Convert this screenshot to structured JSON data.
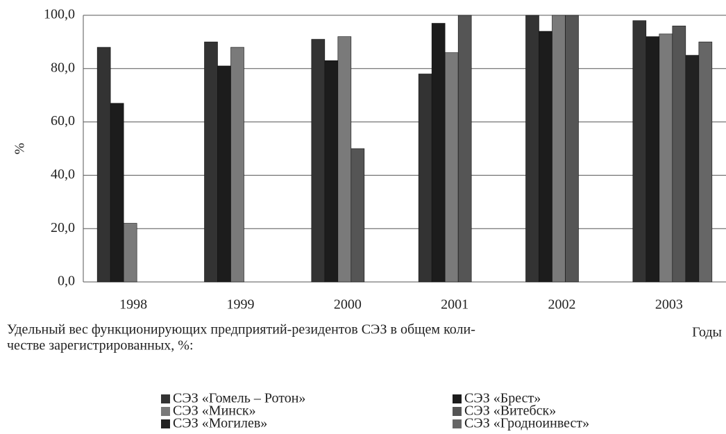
{
  "chart_data": {
    "type": "bar",
    "categories": [
      "1998",
      "1999",
      "2000",
      "2001",
      "2002",
      "2003"
    ],
    "series": [
      {
        "name": "СЭЗ «Гомель – Ротон»",
        "color": "#333333",
        "values": [
          88,
          90,
          91,
          78,
          100,
          98
        ]
      },
      {
        "name": "СЭЗ «Брест»",
        "color": "#1c1c1c",
        "values": [
          67,
          81,
          83,
          97,
          94,
          92
        ]
      },
      {
        "name": "СЭЗ «Минск»",
        "color": "#7a7a7a",
        "values": [
          22,
          88,
          92,
          86,
          100,
          93
        ]
      },
      {
        "name": "СЭЗ «Витебск»",
        "color": "#555555",
        "values": [
          null,
          null,
          50,
          100,
          100,
          96
        ]
      },
      {
        "name": "СЭЗ «Могилев»",
        "color": "#222222",
        "values": [
          null,
          null,
          null,
          null,
          null,
          85
        ]
      },
      {
        "name": "СЭЗ «Гродноинвест»",
        "color": "#666666",
        "values": [
          null,
          null,
          null,
          null,
          null,
          90
        ]
      }
    ],
    "ylabel": "%",
    "xlabel": "Годы",
    "caption": [
      "Удельный вес функционирующих предприятий-резидентов СЭЗ в общем коли-",
      "честве зарегистрированных, %:"
    ],
    "ylim": [
      0,
      100
    ],
    "yticks": [
      {
        "value": 0,
        "label": "0,0"
      },
      {
        "value": 20,
        "label": "20,0"
      },
      {
        "value": 40,
        "label": "40,0"
      },
      {
        "value": 60,
        "label": "60,0"
      },
      {
        "value": 80,
        "label": "80,0"
      },
      {
        "value": 100,
        "label": "100,0"
      }
    ],
    "grid": true
  }
}
